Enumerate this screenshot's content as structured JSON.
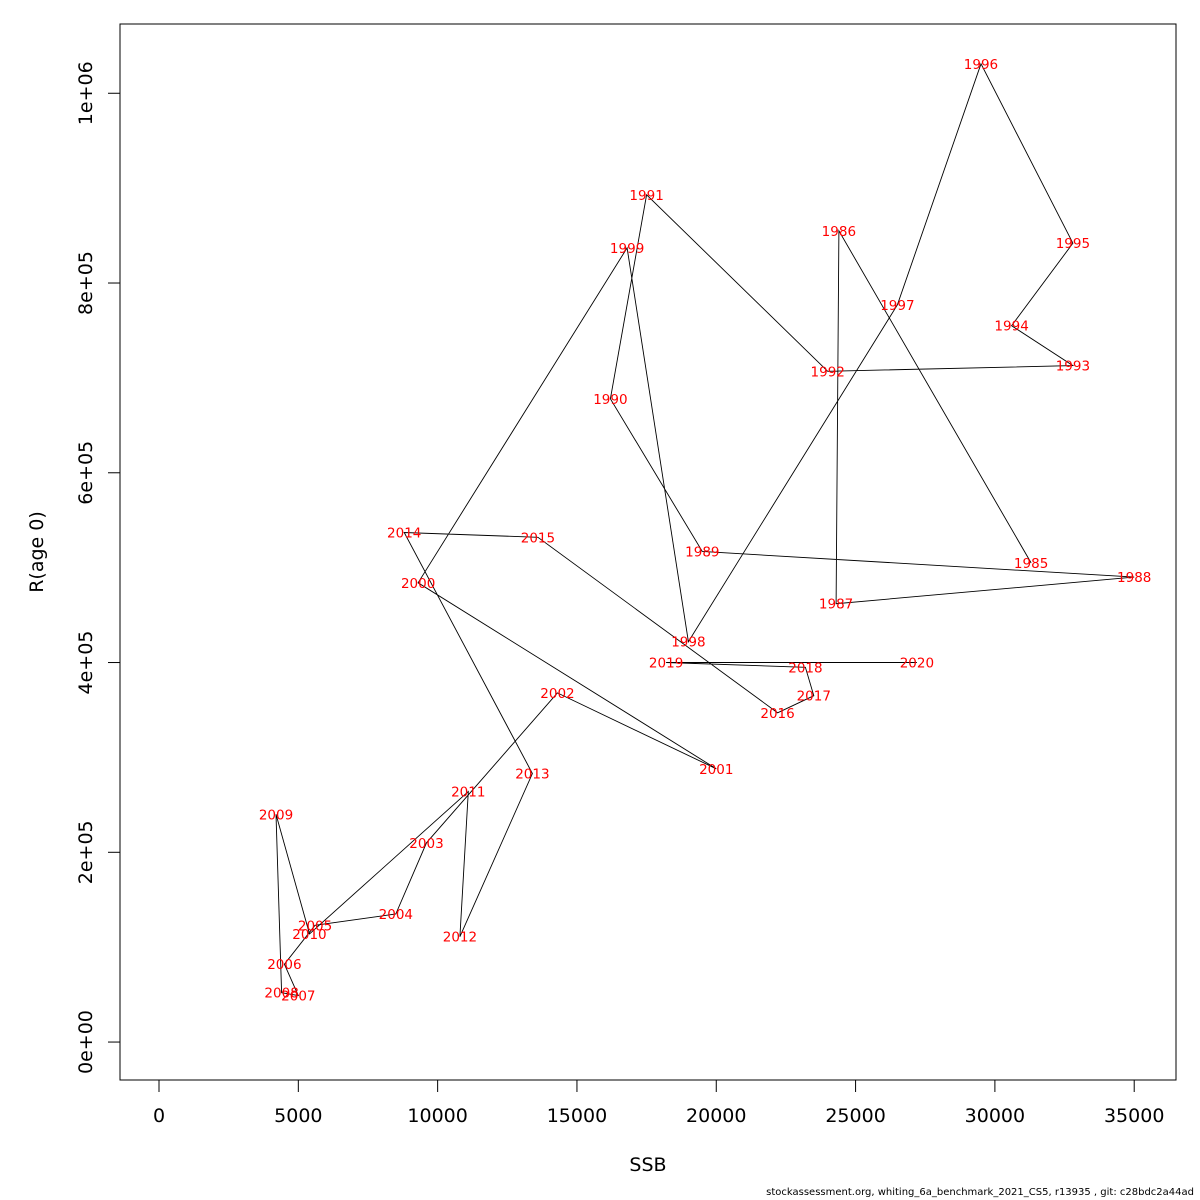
{
  "chart_data": {
    "type": "line",
    "xlabel": "SSB",
    "ylabel": "R(age 0)",
    "xlim": [
      -1400,
      36500
    ],
    "ylim": [
      -40000,
      1073000
    ],
    "x_ticks": [
      0,
      5000,
      10000,
      15000,
      20000,
      25000,
      30000,
      35000
    ],
    "x_tick_labels": [
      "0",
      "5000",
      "10000",
      "15000",
      "20000",
      "25000",
      "30000",
      "35000"
    ],
    "y_ticks": [
      0,
      200000,
      400000,
      600000,
      800000,
      1000000
    ],
    "y_tick_labels": [
      "0e+00",
      "2e+05",
      "4e+05",
      "6e+05",
      "8e+05",
      "1e+06"
    ],
    "grid": false,
    "line_color": "#000000",
    "label_color": "#ff0000",
    "points": [
      {
        "year": "1985",
        "ssb": 31300,
        "r": 505000
      },
      {
        "year": "1986",
        "ssb": 24400,
        "r": 855000
      },
      {
        "year": "1987",
        "ssb": 24300,
        "r": 462000
      },
      {
        "year": "1988",
        "ssb": 35000,
        "r": 490000
      },
      {
        "year": "1989",
        "ssb": 19500,
        "r": 517000
      },
      {
        "year": "1990",
        "ssb": 16200,
        "r": 678000
      },
      {
        "year": "1991",
        "ssb": 17500,
        "r": 893000
      },
      {
        "year": "1992",
        "ssb": 24000,
        "r": 707000
      },
      {
        "year": "1993",
        "ssb": 32800,
        "r": 713000
      },
      {
        "year": "1994",
        "ssb": 30600,
        "r": 755000
      },
      {
        "year": "1995",
        "ssb": 32800,
        "r": 842000
      },
      {
        "year": "1996",
        "ssb": 29500,
        "r": 1031000
      },
      {
        "year": "1997",
        "ssb": 26500,
        "r": 777000
      },
      {
        "year": "1998",
        "ssb": 19000,
        "r": 422000
      },
      {
        "year": "1999",
        "ssb": 16800,
        "r": 837000
      },
      {
        "year": "2000",
        "ssb": 9300,
        "r": 484000
      },
      {
        "year": "2001",
        "ssb": 20000,
        "r": 288000
      },
      {
        "year": "2002",
        "ssb": 14300,
        "r": 368000
      },
      {
        "year": "2003",
        "ssb": 9600,
        "r": 210000
      },
      {
        "year": "2004",
        "ssb": 8500,
        "r": 135000
      },
      {
        "year": "2005",
        "ssb": 5600,
        "r": 123000
      },
      {
        "year": "2006",
        "ssb": 4500,
        "r": 82000
      },
      {
        "year": "2007",
        "ssb": 5000,
        "r": 49000
      },
      {
        "year": "2008",
        "ssb": 4400,
        "r": 52000
      },
      {
        "year": "2009",
        "ssb": 4200,
        "r": 240000
      },
      {
        "year": "2010",
        "ssb": 5400,
        "r": 114000
      },
      {
        "year": "2011",
        "ssb": 11100,
        "r": 264000
      },
      {
        "year": "2012",
        "ssb": 10800,
        "r": 111000
      },
      {
        "year": "2013",
        "ssb": 13400,
        "r": 283000
      },
      {
        "year": "2014",
        "ssb": 8800,
        "r": 537000
      },
      {
        "year": "2015",
        "ssb": 13600,
        "r": 532000
      },
      {
        "year": "2016",
        "ssb": 22200,
        "r": 347000
      },
      {
        "year": "2017",
        "ssb": 23500,
        "r": 365000
      },
      {
        "year": "2018",
        "ssb": 23200,
        "r": 395000
      },
      {
        "year": "2019",
        "ssb": 18200,
        "r": 400000
      },
      {
        "year": "2020",
        "ssb": 27200,
        "r": 400000
      }
    ]
  },
  "footer": "stockassessment.org, whiting_6a_benchmark_2021_CS5, r13935 , git: c28bdc2a44ad"
}
